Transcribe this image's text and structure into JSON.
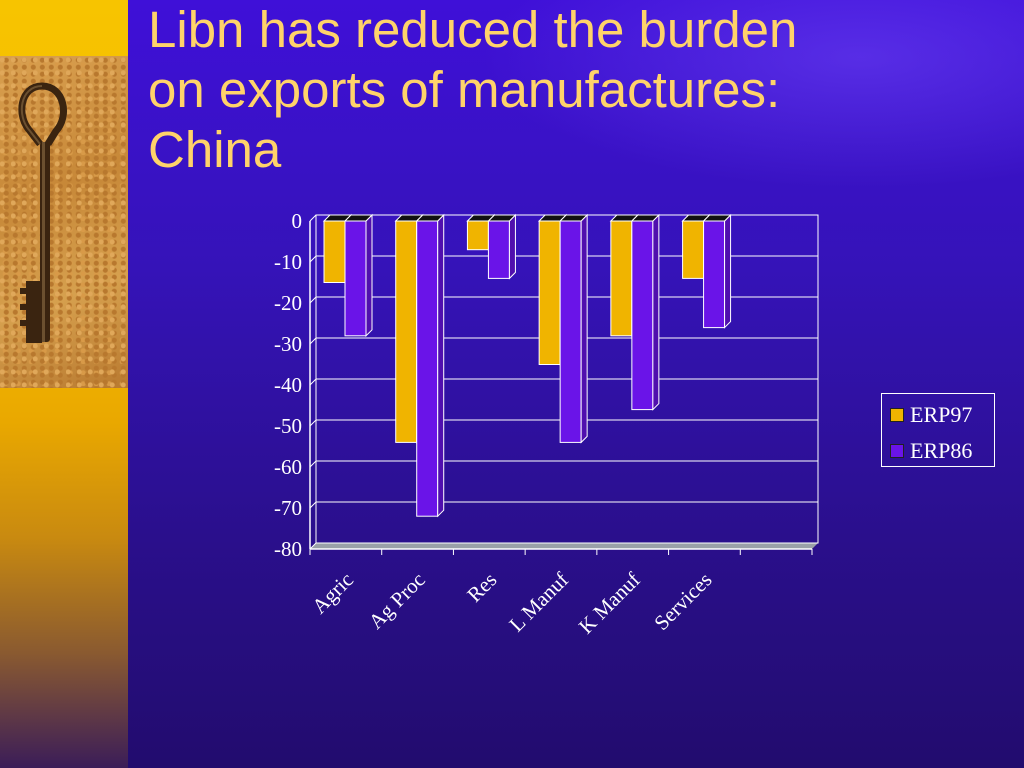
{
  "slide": {
    "title_lines": [
      "Libn has reduced the burden",
      "on exports of manufactures:",
      "China"
    ]
  },
  "colors": {
    "erp97": "#f0b400",
    "erp86": "#6a14e8",
    "axis_text": "#ffffff",
    "title": "#ffd36a"
  },
  "chart_data": {
    "type": "bar",
    "categories": [
      "Agric",
      "Ag Proc",
      "Res",
      "L Manuf",
      "K Manuf",
      "Services"
    ],
    "series": [
      {
        "name": "ERP97",
        "values": [
          -15,
          -54,
          -7,
          -35,
          -28,
          -14
        ]
      },
      {
        "name": "ERP86",
        "values": [
          -28,
          -72,
          -14,
          -54,
          -46,
          -26
        ]
      }
    ],
    "yticks": [
      0,
      -10,
      -20,
      -30,
      -40,
      -50,
      -60,
      -70,
      -80
    ],
    "ylim": [
      -80,
      0
    ],
    "grid": true,
    "legend_position": "right"
  }
}
